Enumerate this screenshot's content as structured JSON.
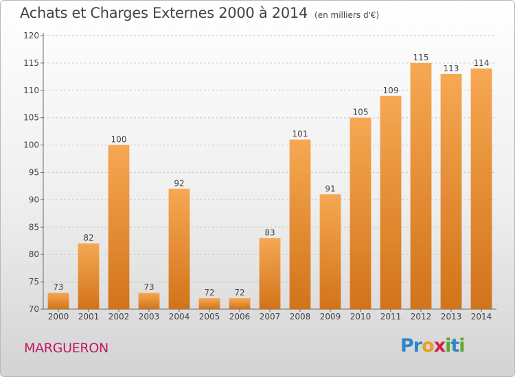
{
  "title": "Achats et Charges Externes 2000 à 2014",
  "subtitle": "(en milliers d'€)",
  "commune": "MARGUERON",
  "logo": {
    "text": "Proxiti",
    "letters": [
      {
        "ch": "P",
        "color": "#2e86c8"
      },
      {
        "ch": "r",
        "color": "#2e86c8"
      },
      {
        "ch": "o",
        "color": "#e8a020"
      },
      {
        "ch": "x",
        "color": "#d02050"
      },
      {
        "ch": "i",
        "color": "#5aa830"
      },
      {
        "ch": "t",
        "color": "#2e86c8"
      },
      {
        "ch": "i",
        "color": "#5aa830"
      }
    ]
  },
  "colors": {
    "bar_light": "#f6a852",
    "bar_dark": "#d2731a",
    "grid": "#c8c8c8",
    "text": "#444444",
    "commune": "#c0185f"
  },
  "chart_data": {
    "type": "bar",
    "categories": [
      "2000",
      "2001",
      "2002",
      "2003",
      "2004",
      "2005",
      "2006",
      "2007",
      "2008",
      "2009",
      "2010",
      "2011",
      "2012",
      "2013",
      "2014"
    ],
    "values": [
      73,
      82,
      100,
      73,
      92,
      72,
      72,
      83,
      101,
      91,
      105,
      109,
      115,
      113,
      114
    ],
    "title": "Achats et Charges Externes 2000 à 2014",
    "ylim": [
      70,
      120
    ],
    "yticks": [
      70,
      75,
      80,
      85,
      90,
      95,
      100,
      105,
      110,
      115,
      120
    ],
    "grid": true,
    "data_labels": true
  }
}
